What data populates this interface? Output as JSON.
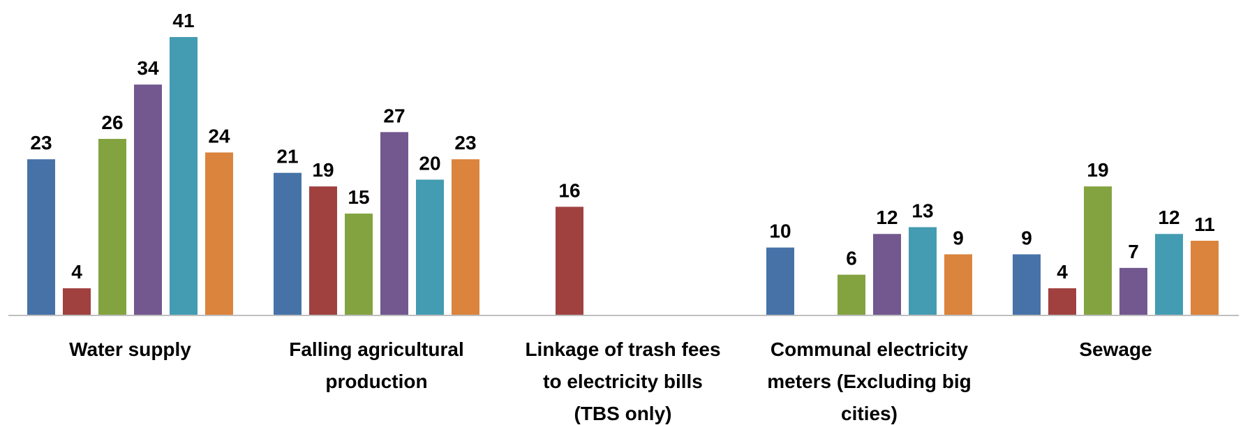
{
  "chart_data": {
    "type": "bar",
    "categories": [
      [
        "Water supply"
      ],
      [
        "Falling agricultural",
        "production"
      ],
      [
        "Linkage of trash fees",
        "to electricity bills",
        "(TBS only)"
      ],
      [
        "Communal electricity",
        "meters (Excluding big",
        "cities)"
      ],
      [
        "Sewage"
      ]
    ],
    "series": [
      {
        "color": "#4672A8",
        "values": [
          23,
          21,
          null,
          10,
          9
        ]
      },
      {
        "color": "#A04140",
        "values": [
          4,
          19,
          16,
          null,
          4
        ]
      },
      {
        "color": "#83A340",
        "values": [
          26,
          15,
          null,
          6,
          19
        ]
      },
      {
        "color": "#72588F",
        "values": [
          34,
          27,
          null,
          12,
          7
        ]
      },
      {
        "color": "#439CB1",
        "values": [
          41,
          20,
          null,
          13,
          12
        ]
      },
      {
        "color": "#DB843D",
        "values": [
          24,
          23,
          null,
          9,
          11
        ]
      }
    ],
    "ylim": [
      0,
      41
    ],
    "grid": false,
    "legend": "none",
    "data_labels": true
  }
}
